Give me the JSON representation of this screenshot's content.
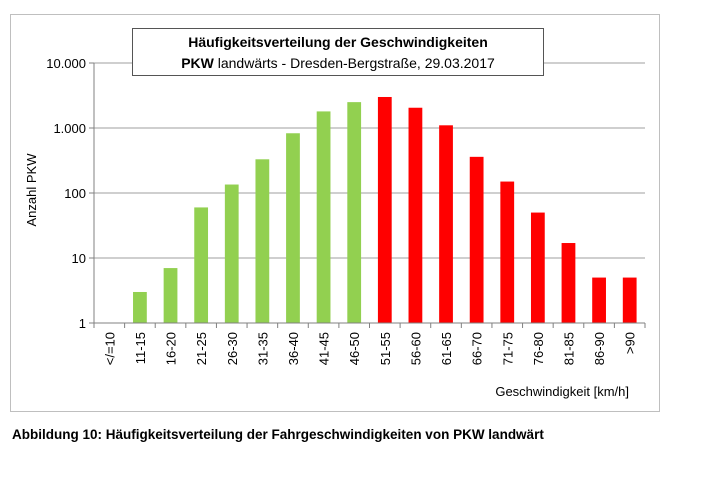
{
  "chart_data": {
    "type": "bar",
    "title": "Häufigkeitsverteilung der Geschwindigkeiten",
    "subtitle_bold": "PKW",
    "subtitle_rest": " landwärts - Dresden-Bergstraße, 29.03.2017",
    "xlabel": "Geschwindigkeit [km/h]",
    "ylabel": "Anzahl PKW",
    "yscale": "log",
    "ylim": [
      1,
      10000
    ],
    "yticks": [
      1,
      10,
      100,
      1000,
      10000
    ],
    "ytick_labels": [
      "1",
      "10",
      "100",
      "1.000",
      "10.000"
    ],
    "grid": "horizontal",
    "categories": [
      "</=10",
      "11-15",
      "16-20",
      "21-25",
      "26-30",
      "31-35",
      "36-40",
      "41-45",
      "46-50",
      "51-55",
      "56-60",
      "61-65",
      "66-70",
      "71-75",
      "76-80",
      "81-85",
      "86-90",
      ">90"
    ],
    "values": [
      1,
      3,
      7,
      60,
      135,
      330,
      830,
      1800,
      2500,
      3000,
      2050,
      1100,
      360,
      150,
      50,
      17,
      5,
      5
    ],
    "colors": [
      "#92d050",
      "#92d050",
      "#92d050",
      "#92d050",
      "#92d050",
      "#92d050",
      "#92d050",
      "#92d050",
      "#92d050",
      "#ff0000",
      "#ff0000",
      "#ff0000",
      "#ff0000",
      "#ff0000",
      "#ff0000",
      "#ff0000",
      "#ff0000",
      "#ff0000"
    ]
  },
  "caption": "Abbildung 10: Häufigkeitsverteilung der Fahrgeschwindigkeiten von PKW landwärt"
}
